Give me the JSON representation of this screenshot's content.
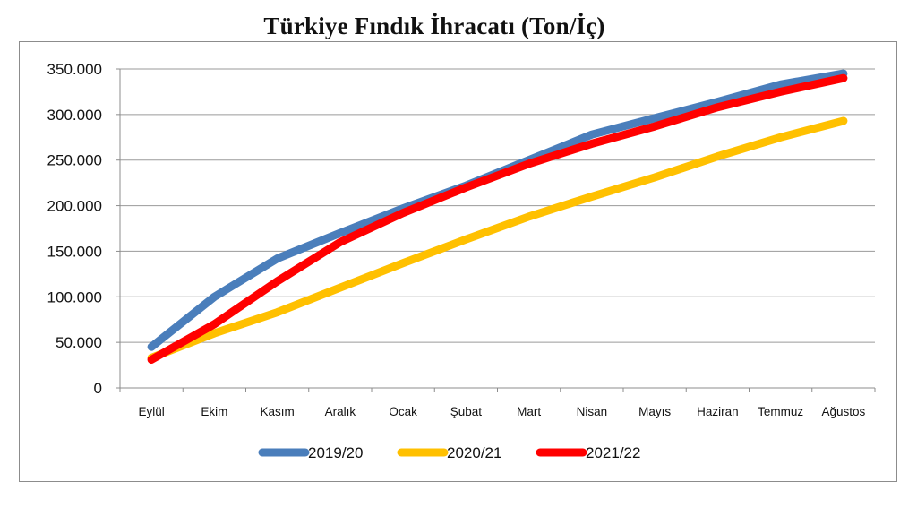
{
  "chart_data": {
    "type": "line",
    "title": "Türkiye Fındık İhracatı (Ton/İç)",
    "categories": [
      "Eylül",
      "Ekim",
      "Kasım",
      "Aralık",
      "Ocak",
      "Şubat",
      "Mart",
      "Nisan",
      "Mayıs",
      "Haziran",
      "Temmuz",
      "Ağustos"
    ],
    "y_ticks": [
      "0",
      "50.000",
      "100.000",
      "150.000",
      "200.000",
      "250.000",
      "300.000",
      "350.000"
    ],
    "ylim": [
      0,
      350000
    ],
    "grid": true,
    "legend_position": "bottom",
    "series": [
      {
        "name": "2019/20",
        "color": "#4a7ebb",
        "values": [
          45000,
          100000,
          142000,
          170000,
          197000,
          222000,
          250000,
          278000,
          296000,
          314000,
          333000,
          345000
        ]
      },
      {
        "name": "2020/21",
        "color": "#ffc000",
        "values": [
          33000,
          60000,
          83000,
          110000,
          137000,
          163000,
          188000,
          210000,
          231000,
          254000,
          275000,
          293000
        ]
      },
      {
        "name": "2021/22",
        "color": "#ff0000",
        "values": [
          31000,
          70000,
          117000,
          160000,
          192000,
          220000,
          246000,
          268000,
          287000,
          308000,
          325000,
          340000
        ]
      }
    ]
  }
}
